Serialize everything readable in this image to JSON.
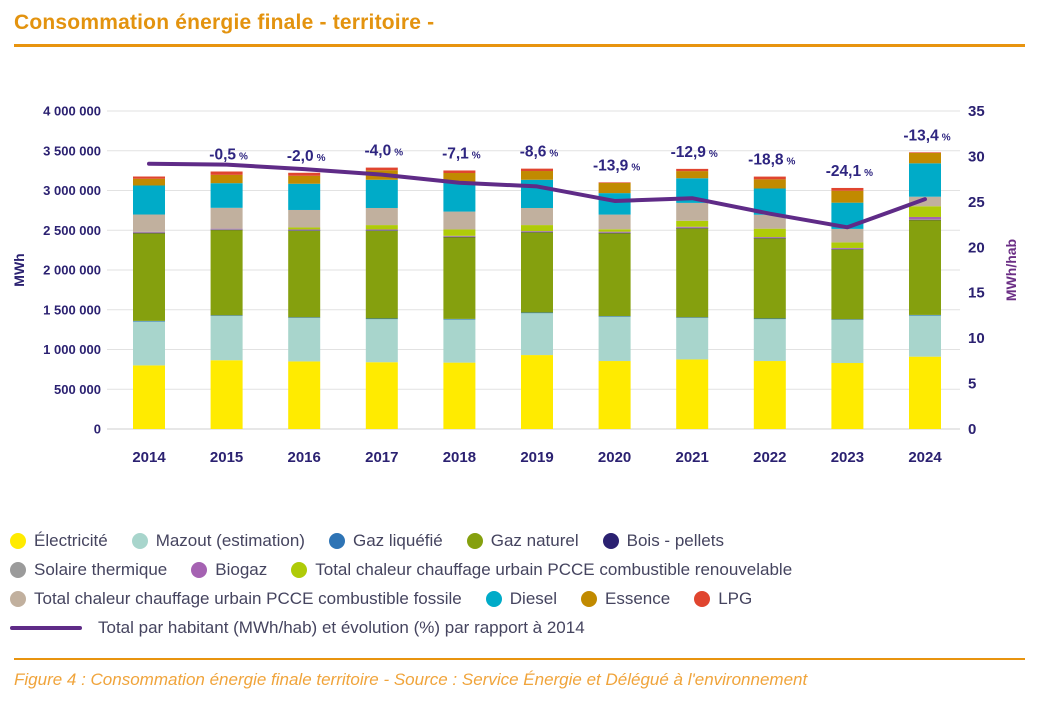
{
  "page": {
    "title": "Consommation énergie finale - territoire -",
    "caption": "Figure 4 : Consommation énergie finale territoire - Source : Service Énergie et Délégué à l'environnement",
    "accent_color": "#E8940F"
  },
  "chart_data": {
    "type": "bar",
    "subtype": "stacked-bars-with-line",
    "categories": [
      "2014",
      "2015",
      "2016",
      "2017",
      "2018",
      "2019",
      "2020",
      "2021",
      "2022",
      "2023",
      "2024"
    ],
    "axes": {
      "left": {
        "label": "MWh",
        "min": 0,
        "max": 4000000,
        "step": 500000,
        "color": "#2B2171"
      },
      "right": {
        "label": "MWh/hab",
        "min": 0,
        "max": 35,
        "step": 5,
        "color": "#6B2E85"
      }
    },
    "grid": "horizontal",
    "series": [
      {
        "name": "Électricité",
        "color": "#FFEB00",
        "values": [
          800000,
          865000,
          850000,
          840000,
          835000,
          930000,
          855000,
          875000,
          855000,
          830000,
          910000
        ]
      },
      {
        "name": "Mazout (estimation)",
        "color": "#A8D5CC",
        "values": [
          555000,
          560000,
          550000,
          545000,
          545000,
          530000,
          560000,
          525000,
          530000,
          545000,
          520000
        ]
      },
      {
        "name": "Gaz liquéfié",
        "color": "#2E74B5",
        "values": [
          5000,
          5000,
          5000,
          5000,
          5000,
          5000,
          5000,
          5000,
          5000,
          5000,
          5000
        ]
      },
      {
        "name": "Gaz naturel",
        "color": "#85A00E",
        "values": [
          1105000,
          1075000,
          1090000,
          1105000,
          1030000,
          1010000,
          1045000,
          1120000,
          1010000,
          880000,
          1195000
        ]
      },
      {
        "name": "Bois - pellets",
        "color": "#2B2171",
        "values": [
          4000,
          4000,
          4000,
          4000,
          4000,
          4000,
          4000,
          4000,
          4000,
          4000,
          4000
        ]
      },
      {
        "name": "Solaire thermique",
        "color": "#9B9B9B",
        "values": [
          3000,
          3000,
          3000,
          3000,
          3000,
          3000,
          3000,
          3000,
          3000,
          3000,
          3000
        ]
      },
      {
        "name": "Biogaz",
        "color": "#A562B2",
        "values": [
          8000,
          8000,
          8000,
          8000,
          8000,
          8000,
          10000,
          12000,
          8000,
          10000,
          30000
        ]
      },
      {
        "name": "Total chaleur chauffage urbain PCCE combustible renouvelable",
        "color": "#AFCB08",
        "values": [
          0,
          0,
          25000,
          55000,
          80000,
          75000,
          30000,
          75000,
          105000,
          70000,
          135000
        ]
      },
      {
        "name": "Total chaleur chauffage urbain PCCE combustible fossile",
        "color": "#C1B09E",
        "values": [
          218000,
          262000,
          220000,
          215000,
          225000,
          215000,
          185000,
          225000,
          175000,
          170000,
          120000
        ]
      },
      {
        "name": "Diesel",
        "color": "#00ABC8",
        "values": [
          365000,
          310000,
          330000,
          355000,
          360000,
          355000,
          270000,
          310000,
          330000,
          330000,
          420000
        ]
      },
      {
        "name": "Essence",
        "color": "#C18A00",
        "values": [
          85000,
          105000,
          100000,
          120000,
          125000,
          110000,
          130000,
          90000,
          115000,
          150000,
          130000
        ]
      },
      {
        "name": "LPG",
        "color": "#E0452F",
        "values": [
          28000,
          42000,
          38000,
          33000,
          32000,
          30000,
          5000,
          28000,
          35000,
          35000,
          8000
        ]
      }
    ],
    "line_series": {
      "name": "Total par habitant (MWh/hab) et évolution (%) par rapport à 2014",
      "color": "#5F2B87",
      "axis": "right",
      "values": [
        29.2,
        29.1,
        28.6,
        28.0,
        27.1,
        26.7,
        25.1,
        25.4,
        23.7,
        22.2,
        25.3
      ]
    },
    "pct_labels": [
      null,
      "-0,5",
      "-2,0",
      "-4,0",
      "-7,1",
      "-8,6",
      "-13,9",
      "-12,9",
      "-18,8",
      "-24,1",
      "-13,4"
    ],
    "pct_suffix": "%",
    "pct_color": "#2E2580"
  },
  "legend": {
    "rows": [
      [
        {
          "label": "Électricité",
          "color": "#FFEB00",
          "marker": "dot"
        },
        {
          "label": "Mazout (estimation)",
          "color": "#A8D5CC",
          "marker": "dot"
        },
        {
          "label": "Gaz liquéfié",
          "color": "#2E74B5",
          "marker": "dot"
        },
        {
          "label": "Gaz naturel",
          "color": "#85A00E",
          "marker": "dot"
        },
        {
          "label": "Bois - pellets",
          "color": "#2B2171",
          "marker": "dot"
        }
      ],
      [
        {
          "label": "Solaire thermique",
          "color": "#9B9B9B",
          "marker": "dot"
        },
        {
          "label": "Biogaz",
          "color": "#A562B2",
          "marker": "dot"
        },
        {
          "label": "Total chaleur chauffage urbain PCCE combustible renouvelable",
          "color": "#AFCB08",
          "marker": "dot"
        }
      ],
      [
        {
          "label": "Total chaleur chauffage urbain PCCE combustible fossile",
          "color": "#C1B09E",
          "marker": "dot"
        },
        {
          "label": "Diesel",
          "color": "#00ABC8",
          "marker": "dot"
        },
        {
          "label": "Essence",
          "color": "#C18A00",
          "marker": "dot"
        },
        {
          "label": "LPG",
          "color": "#E0452F",
          "marker": "dot"
        }
      ],
      [
        {
          "label": "Total par habitant (MWh/hab) et évolution (%) par rapport à 2014",
          "color": "#5F2B87",
          "marker": "line"
        }
      ]
    ]
  }
}
